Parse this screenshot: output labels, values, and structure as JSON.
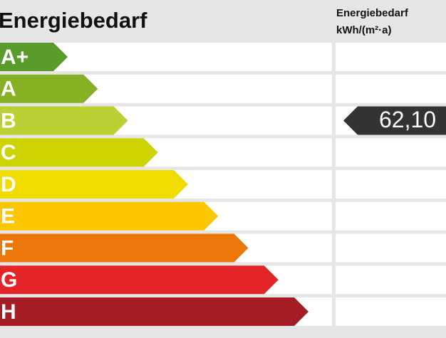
{
  "title": "Energiebedarf",
  "column_header": [
    "Energiebedarf",
    "kWh/(m²·a)"
  ],
  "classes": [
    {
      "label": "A+",
      "color": "#5a9c2b"
    },
    {
      "label": "A",
      "color": "#86b124"
    },
    {
      "label": "B",
      "color": "#bad033",
      "value_label": "62,10"
    },
    {
      "label": "C",
      "color": "#cdd300"
    },
    {
      "label": "D",
      "color": "#f0dc00"
    },
    {
      "label": "E",
      "color": "#fcc700"
    },
    {
      "label": "F",
      "color": "#ec7708"
    },
    {
      "label": "G",
      "color": "#e32528"
    },
    {
      "label": "H",
      "color": "#a41c24"
    }
  ]
}
